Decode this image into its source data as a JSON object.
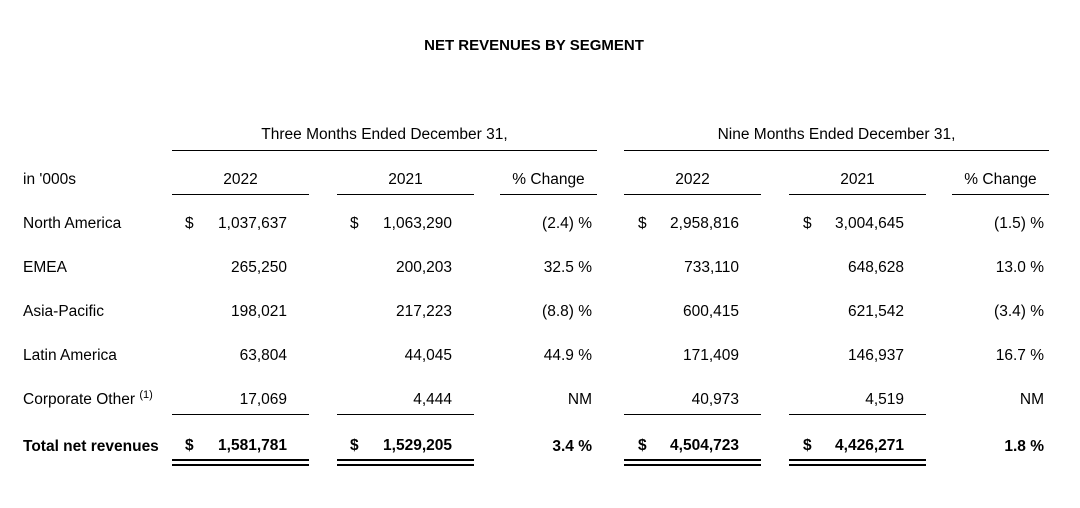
{
  "title": "NET REVENUES BY SEGMENT",
  "groups": [
    "Three Months Ended December 31,",
    "Nine Months Ended December 31,"
  ],
  "unit_label": "in '000s",
  "columns": [
    "2022",
    "2021",
    "% Change",
    "2022",
    "2021",
    "% Change"
  ],
  "currency_symbol": "$",
  "rows": [
    {
      "label": "North America",
      "values": [
        "1,037,637",
        "1,063,290",
        "(2.4) %",
        "2,958,816",
        "3,004,645",
        "(1.5) %"
      ]
    },
    {
      "label": "EMEA",
      "values": [
        "265,250",
        "200,203",
        "32.5 %",
        "733,110",
        "648,628",
        "13.0 %"
      ]
    },
    {
      "label": "Asia-Pacific",
      "values": [
        "198,021",
        "217,223",
        "(8.8) %",
        "600,415",
        "621,542",
        "(3.4) %"
      ]
    },
    {
      "label": "Latin America",
      "values": [
        "63,804",
        "44,045",
        "44.9 %",
        "171,409",
        "146,937",
        "16.7 %"
      ]
    },
    {
      "label": "Corporate Other",
      "footnote": "(1)",
      "values": [
        "17,069",
        "4,444",
        "NM",
        "40,973",
        "4,519",
        "NM"
      ]
    }
  ],
  "total": {
    "label": "Total net revenues",
    "values": [
      "1,581,781",
      "1,529,205",
      "3.4 %",
      "4,504,723",
      "4,426,271",
      "1.8 %"
    ]
  }
}
